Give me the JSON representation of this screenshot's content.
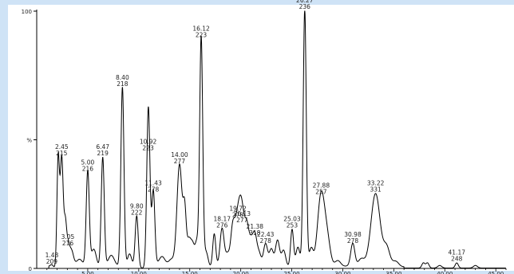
{
  "chart_data": {
    "type": "line",
    "xlabel": "",
    "ylabel": "",
    "xlim": [
      0,
      46
    ],
    "ylim": [
      0,
      100
    ],
    "y_ticks": [
      {
        "value": 100,
        "label": "100"
      },
      {
        "value": 50,
        "label": "%"
      },
      {
        "value": 0,
        "label": "0"
      }
    ],
    "x_ticks": [
      {
        "value": 5,
        "label": "5.00"
      },
      {
        "value": 10,
        "label": "10.00"
      },
      {
        "value": 15,
        "label": "15.00"
      },
      {
        "value": 20,
        "label": "20.00"
      },
      {
        "value": 25,
        "label": "25.00"
      },
      {
        "value": 30,
        "label": "30.00"
      },
      {
        "value": 35,
        "label": "35.00"
      },
      {
        "value": 40,
        "label": "40.00"
      },
      {
        "value": 45,
        "label": "45.00"
      }
    ],
    "peaks": [
      {
        "time": "1.48",
        "mass": "209",
        "x": 1.48,
        "y": 1,
        "h": 0.15
      },
      {
        "time": "2.45",
        "mass": "215",
        "x": 2.45,
        "y": 43,
        "h": 0.15
      },
      {
        "time": "3.05",
        "mass": "216",
        "x": 3.05,
        "y": 8,
        "h": 0.15
      },
      {
        "time": "5.00",
        "mass": "216",
        "x": 5.0,
        "y": 37,
        "h": 0.15
      },
      {
        "time": "6.47",
        "mass": "219",
        "x": 6.47,
        "y": 43,
        "h": 0.15
      },
      {
        "time": "8.40",
        "mass": "218",
        "x": 8.4,
        "y": 70,
        "h": 0.15
      },
      {
        "time": "9.80",
        "mass": "222",
        "x": 9.8,
        "y": 20,
        "h": 0.15
      },
      {
        "time": "10.92",
        "mass": "223",
        "x": 10.92,
        "y": 45,
        "h": 0.15
      },
      {
        "time": "11.43",
        "mass": "278",
        "x": 11.43,
        "y": 29,
        "h": 0.15
      },
      {
        "time": "14.00",
        "mass": "277",
        "x": 14.0,
        "y": 40,
        "h": 0.25
      },
      {
        "time": "16.12",
        "mass": "223",
        "x": 16.12,
        "y": 89,
        "h": 0.15
      },
      {
        "time": "18.17",
        "mass": "276",
        "x": 18.17,
        "y": 15,
        "h": 0.2
      },
      {
        "time": "19.72",
        "mass": "278",
        "x": 19.72,
        "y": 19,
        "h": 0.3
      },
      {
        "time": "20.13",
        "mass": "277",
        "x": 20.13,
        "y": 17,
        "h": 0.25
      },
      {
        "time": "21.38",
        "mass": "318",
        "x": 21.38,
        "y": 12,
        "h": 0.2
      },
      {
        "time": "22.43",
        "mass": "278",
        "x": 22.43,
        "y": 9,
        "h": 0.2
      },
      {
        "time": "25.03",
        "mass": "253",
        "x": 25.03,
        "y": 15,
        "h": 0.15
      },
      {
        "time": "26.27",
        "mass": "236",
        "x": 26.27,
        "y": 100,
        "h": 0.15
      },
      {
        "time": "27.88",
        "mass": "257",
        "x": 27.88,
        "y": 28,
        "h": 0.35
      },
      {
        "time": "30.98",
        "mass": "278",
        "x": 30.98,
        "y": 9,
        "h": 0.2
      },
      {
        "time": "33.22",
        "mass": "331",
        "x": 33.22,
        "y": 29,
        "h": 0.45
      },
      {
        "time": "41.17",
        "mass": "248",
        "x": 41.17,
        "y": 2,
        "h": 0.15
      }
    ],
    "minor_peaks": [
      {
        "x": 2.1,
        "y": 42,
        "h": 0.12
      },
      {
        "x": 2.8,
        "y": 15,
        "h": 0.12
      },
      {
        "x": 3.4,
        "y": 6,
        "h": 0.2
      },
      {
        "x": 4.2,
        "y": 3,
        "h": 0.3
      },
      {
        "x": 5.6,
        "y": 7,
        "h": 0.25
      },
      {
        "x": 7.3,
        "y": 4,
        "h": 0.3
      },
      {
        "x": 9.1,
        "y": 5,
        "h": 0.2
      },
      {
        "x": 11.0,
        "y": 19,
        "h": 0.15
      },
      {
        "x": 12.3,
        "y": 4,
        "h": 0.3
      },
      {
        "x": 13.2,
        "y": 3,
        "h": 0.3
      },
      {
        "x": 14.5,
        "y": 20,
        "h": 0.15
      },
      {
        "x": 14.9,
        "y": 10,
        "h": 0.2
      },
      {
        "x": 15.3,
        "y": 8,
        "h": 0.2
      },
      {
        "x": 15.7,
        "y": 8,
        "h": 0.15
      },
      {
        "x": 16.6,
        "y": 6,
        "h": 0.2
      },
      {
        "x": 17.4,
        "y": 13,
        "h": 0.15
      },
      {
        "x": 18.7,
        "y": 5,
        "h": 0.2
      },
      {
        "x": 19.2,
        "y": 13,
        "h": 0.2
      },
      {
        "x": 20.6,
        "y": 14,
        "h": 0.2
      },
      {
        "x": 21.0,
        "y": 9,
        "h": 0.2
      },
      {
        "x": 21.8,
        "y": 5,
        "h": 0.2
      },
      {
        "x": 23.0,
        "y": 7,
        "h": 0.2
      },
      {
        "x": 23.6,
        "y": 10,
        "h": 0.2
      },
      {
        "x": 24.2,
        "y": 6,
        "h": 0.2
      },
      {
        "x": 25.6,
        "y": 8,
        "h": 0.2
      },
      {
        "x": 26.9,
        "y": 7,
        "h": 0.2
      },
      {
        "x": 28.5,
        "y": 9,
        "h": 0.3
      },
      {
        "x": 29.5,
        "y": 3,
        "h": 0.3
      },
      {
        "x": 31.8,
        "y": 3,
        "h": 0.3
      },
      {
        "x": 34.3,
        "y": 7,
        "h": 0.3
      },
      {
        "x": 35.2,
        "y": 2,
        "h": 0.3
      },
      {
        "x": 37.9,
        "y": 2,
        "h": 0.15
      },
      {
        "x": 38.3,
        "y": 2,
        "h": 0.15
      },
      {
        "x": 39.5,
        "y": 1,
        "h": 0.2
      },
      {
        "x": 43.0,
        "y": 1,
        "h": 0.2
      }
    ]
  }
}
